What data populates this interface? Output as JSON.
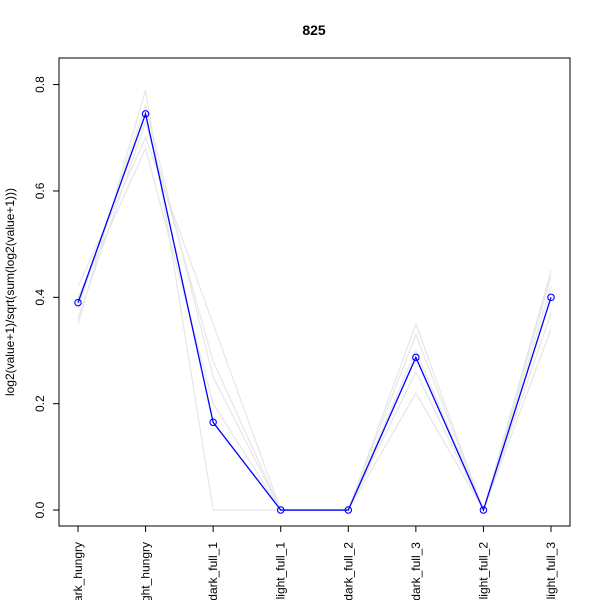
{
  "chart_data": {
    "type": "line",
    "title": "825",
    "xlabel": "",
    "ylabel": "log2(value+1)/sqrt(sum(log2(value+1)))",
    "categories": [
      "dark_hungry",
      "light_hungry",
      "dark_full_1",
      "light_full_1",
      "dark_full_2",
      "dark_full_3",
      "light_full_2",
      "light_full_3"
    ],
    "ylim": [
      -0.03,
      0.85
    ],
    "yticks": [
      0.0,
      0.2,
      0.4,
      0.6,
      0.8
    ],
    "ytick_labels": [
      "0.0",
      "0.2",
      "0.4",
      "0.6",
      "0.8"
    ],
    "highlight_color": "#0000ff",
    "background_color": "#e6e6e6",
    "highlight": {
      "values": [
        0.39,
        0.745,
        0.165,
        0.0,
        0.0,
        0.287,
        0.0,
        0.4
      ]
    },
    "background_series": [
      {
        "values": [
          0.35,
          0.79,
          0.0,
          0.0,
          0.0,
          0.35,
          0.0,
          0.44
        ]
      },
      {
        "values": [
          0.42,
          0.7,
          0.35,
          0.0,
          0.0,
          0.22,
          0.0,
          0.34
        ]
      },
      {
        "values": [
          0.38,
          0.76,
          0.25,
          0.0,
          0.0,
          0.3,
          0.0,
          0.42
        ]
      },
      {
        "values": [
          0.4,
          0.68,
          0.2,
          0.0,
          0.0,
          0.26,
          0.0,
          0.37
        ]
      },
      {
        "values": [
          0.36,
          0.73,
          0.28,
          0.0,
          0.0,
          0.33,
          0.0,
          0.45
        ]
      }
    ]
  }
}
